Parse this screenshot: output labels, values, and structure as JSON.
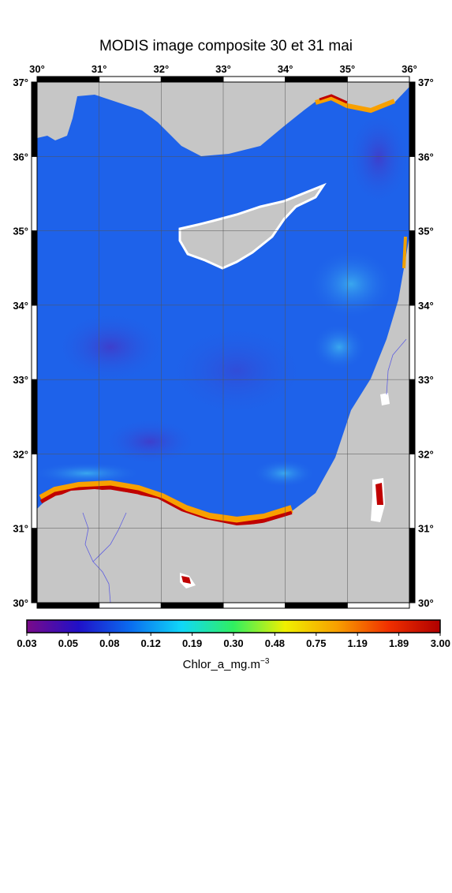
{
  "title": "MODIS image composite 30 et 31 mai",
  "lon_ticks": [
    {
      "value": 30,
      "label": "30"
    },
    {
      "value": 31,
      "label": "31"
    },
    {
      "value": 32,
      "label": "32"
    },
    {
      "value": 33,
      "label": "33"
    },
    {
      "value": 34,
      "label": "34"
    },
    {
      "value": 35,
      "label": "35"
    },
    {
      "value": 36,
      "label": "36"
    }
  ],
  "lat_ticks": [
    {
      "value": 37,
      "label": "37"
    },
    {
      "value": 36,
      "label": "36"
    },
    {
      "value": 35,
      "label": "35"
    },
    {
      "value": 34,
      "label": "34"
    },
    {
      "value": 33,
      "label": "33"
    },
    {
      "value": 32,
      "label": "32"
    },
    {
      "value": 31,
      "label": "31"
    },
    {
      "value": 30,
      "label": "30"
    }
  ],
  "degree_mark": "°",
  "colorbar": {
    "label_text": "Chlor_a_mg.m",
    "label_exponent": "−3",
    "ticks": [
      "0.03",
      "0.05",
      "0.08",
      "0.12",
      "0.19",
      "0.30",
      "0.48",
      "0.75",
      "1.19",
      "1.89",
      "3.00"
    ],
    "colors": [
      "#7a0a8a",
      "#2010c8",
      "#0a6cf0",
      "#10d8f8",
      "#30f060",
      "#f0f000",
      "#f8a000",
      "#f03000",
      "#b00000"
    ]
  },
  "map_colors": {
    "land": "#c6c6c6",
    "sea": "#1e62ea",
    "sea_dark": "#2a3cc8",
    "sea_light": "#3aa8f0",
    "coast_high": "#c00000"
  }
}
